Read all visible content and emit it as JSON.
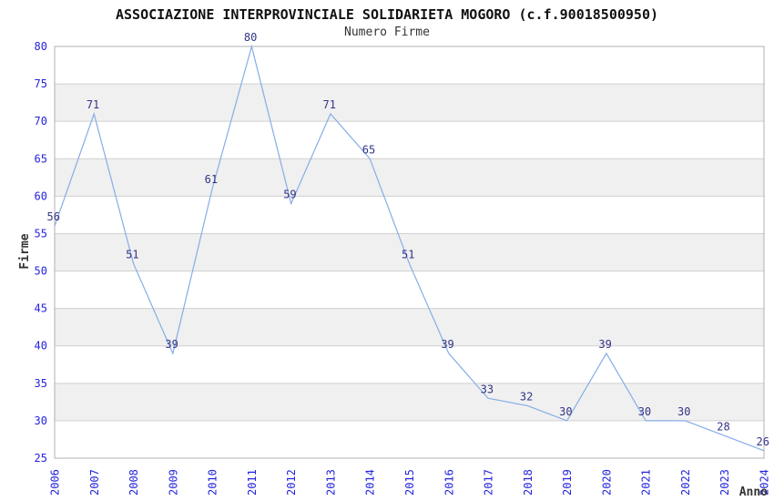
{
  "chart_data": {
    "type": "line",
    "title": "ASSOCIAZIONE INTERPROVINCIALE SOLIDARIETA MOGORO (c.f.90018500950)",
    "subtitle": "Numero Firme",
    "xlabel": "Anno",
    "ylabel": "Firme",
    "x": [
      "2006",
      "2007",
      "2008",
      "2009",
      "2010",
      "2011",
      "2012",
      "2013",
      "2014",
      "2015",
      "2016",
      "2017",
      "2018",
      "2019",
      "2020",
      "2021",
      "2022",
      "2023",
      "2024"
    ],
    "series": [
      {
        "name": "Numero Firme",
        "values": [
          56,
          71,
          51,
          39,
          61,
          80,
          59,
          71,
          65,
          51,
          39,
          33,
          32,
          30,
          39,
          30,
          30,
          28,
          26
        ]
      }
    ],
    "ylim": [
      25,
      80
    ],
    "ytick_step": 5,
    "grid": true,
    "alternating_bands": true,
    "legend_position": "none",
    "point_labels_visible": true,
    "colors": {
      "line": "#85ade6",
      "band": "#f0f0f0",
      "grid": "#d0d0d0",
      "border": "#b0b0b0",
      "tick_label": "#2424dd",
      "point_label": "#333388",
      "axis_title": "#333333",
      "title": "#111111",
      "background": "#ffffff"
    }
  }
}
